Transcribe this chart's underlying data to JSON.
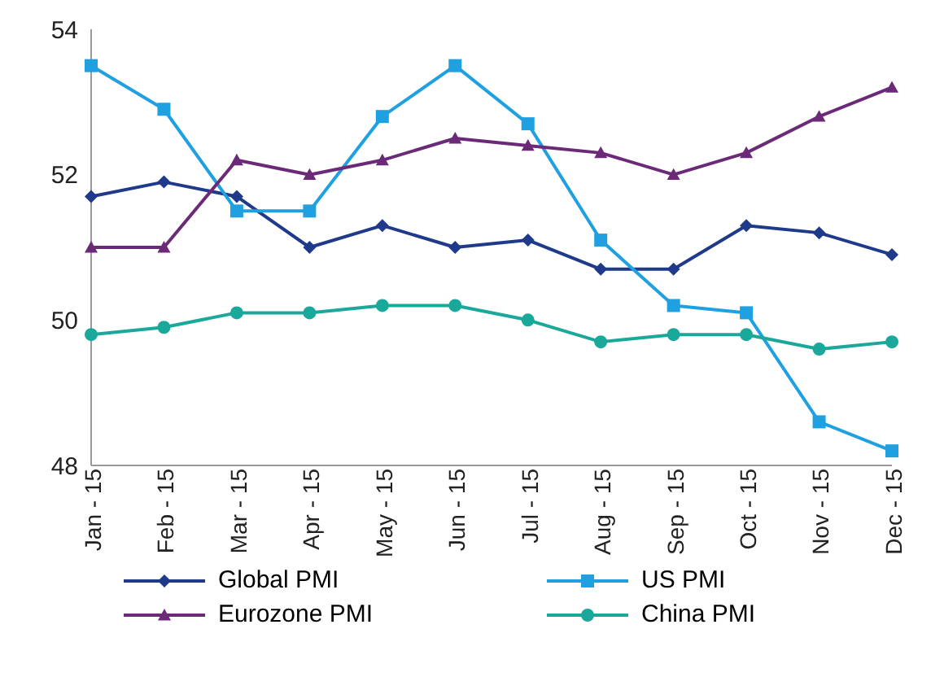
{
  "chart_data": {
    "type": "line",
    "categories": [
      "Jan - 15",
      "Feb - 15",
      "Mar - 15",
      "Apr - 15",
      "May - 15",
      "Jun - 15",
      "Jul - 15",
      "Aug - 15",
      "Sep - 15",
      "Oct - 15",
      "Nov - 15",
      "Dec - 15"
    ],
    "series": [
      {
        "name": "Global PMI",
        "color": "#1f3a8a",
        "marker": "diamond",
        "values": [
          51.7,
          51.9,
          51.7,
          51.0,
          51.3,
          51.0,
          51.1,
          50.7,
          50.7,
          51.3,
          51.2,
          50.9
        ]
      },
      {
        "name": "US PMI",
        "color": "#1fa0e0",
        "marker": "square",
        "values": [
          53.5,
          52.9,
          51.5,
          51.5,
          52.8,
          53.5,
          52.7,
          51.1,
          50.2,
          50.1,
          48.6,
          48.2
        ]
      },
      {
        "name": "Eurozone PMI",
        "color": "#6b2a78",
        "marker": "triangle",
        "values": [
          51.0,
          51.0,
          52.2,
          52.0,
          52.2,
          52.5,
          52.4,
          52.3,
          52.0,
          52.3,
          52.8,
          53.2
        ]
      },
      {
        "name": "China PMI",
        "color": "#1aa89a",
        "marker": "circle",
        "values": [
          49.8,
          49.9,
          50.1,
          50.1,
          50.2,
          50.2,
          50.0,
          49.7,
          49.8,
          49.8,
          49.6,
          49.7
        ]
      }
    ],
    "ylim": [
      48,
      54
    ],
    "yticks": [
      48,
      50,
      52,
      54
    ],
    "grid": false,
    "legend": "bottom",
    "line_style": "solid"
  }
}
